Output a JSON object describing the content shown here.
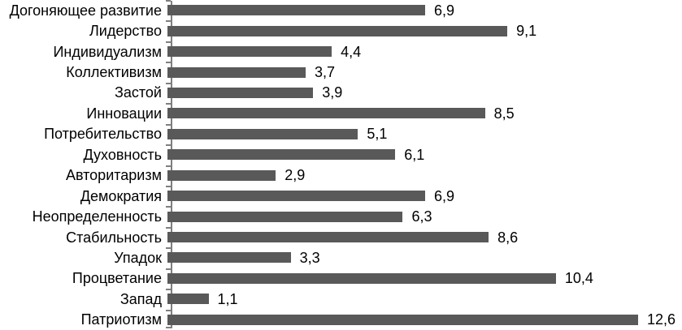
{
  "chart_data": {
    "type": "bar",
    "orientation": "horizontal",
    "title": "",
    "xlabel": "",
    "ylabel": "",
    "categories": [
      "Догоняющее развитие",
      "Лидерство",
      "Индивидуализм",
      "Коллективизм",
      "Застой",
      "Инновации",
      "Потребительство",
      "Духовность",
      "Авторитаризм",
      "Демократия",
      "Неопределенность",
      "Стабильность",
      "Упадок",
      "Процветание",
      "Запад",
      "Патриотизм"
    ],
    "values": [
      6.9,
      9.1,
      4.4,
      3.7,
      3.9,
      8.5,
      5.1,
      6.1,
      2.9,
      6.9,
      6.3,
      8.6,
      3.3,
      10.4,
      1.1,
      12.6
    ],
    "value_labels": [
      "6,9",
      "9,1",
      "4,4",
      "3,7",
      "3,9",
      "8,5",
      "5,1",
      "6,1",
      "2,9",
      "6,9",
      "6,3",
      "8,6",
      "3,3",
      "10,4",
      "1,1",
      "12,6"
    ],
    "xlim": [
      0,
      13.7
    ],
    "grid": false,
    "legend": false,
    "data_labels": "outside-end",
    "bar_color": "#595959",
    "axis_color": "#7f7f7f",
    "text_color": "#000000"
  }
}
